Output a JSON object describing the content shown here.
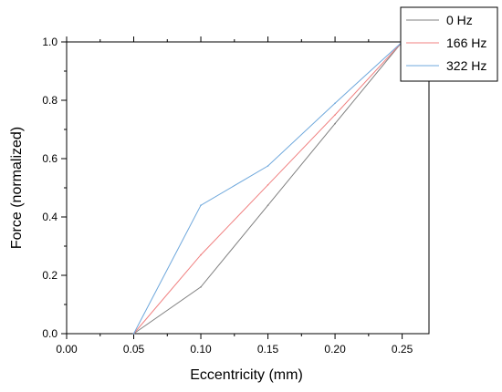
{
  "chart_data": {
    "type": "line",
    "title": "",
    "xlabel": "Eccentricity (mm)",
    "ylabel": "Force (normalized)",
    "xlim": [
      0.0,
      0.27
    ],
    "ylim": [
      0.0,
      1.0
    ],
    "xticks": [
      "0.00",
      "0.05",
      "0.10",
      "0.15",
      "0.20",
      "0.25"
    ],
    "yticks": [
      "0.0",
      "0.2",
      "0.4",
      "0.6",
      "0.8",
      "1.0"
    ],
    "grid": false,
    "legend_position": "top-right",
    "x": [
      0.05,
      0.1,
      0.15,
      0.2,
      0.25
    ],
    "series": [
      {
        "name": "0 Hz",
        "color": "#808080",
        "values": [
          0.0,
          0.16,
          0.44,
          0.72,
          1.0
        ]
      },
      {
        "name": "166 Hz",
        "color": "#f08080",
        "values": [
          0.0,
          0.27,
          0.51,
          0.75,
          1.0
        ]
      },
      {
        "name": "322 Hz",
        "color": "#6fa8dc",
        "values": [
          0.0,
          0.44,
          0.575,
          0.79,
          1.0
        ]
      }
    ]
  }
}
